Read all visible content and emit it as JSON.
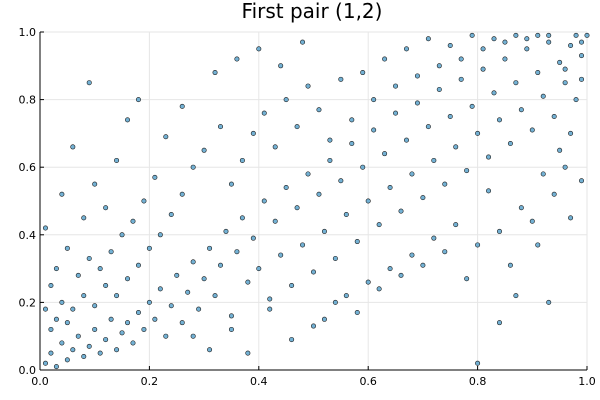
{
  "chart_data": {
    "type": "scatter",
    "title": "First pair (1,2)",
    "xlabel": "",
    "ylabel": "",
    "xlim": [
      0,
      1
    ],
    "ylim": [
      0,
      1
    ],
    "xticks": [
      0.0,
      0.2,
      0.4,
      0.6,
      0.8,
      1.0
    ],
    "yticks": [
      0.0,
      0.2,
      0.4,
      0.6,
      0.8,
      1.0
    ],
    "xtick_labels": [
      "0.0",
      "0.2",
      "0.4",
      "0.6",
      "0.8",
      "1.0"
    ],
    "ytick_labels": [
      "0.0",
      "0.2",
      "0.4",
      "0.6",
      "0.8",
      "1.0"
    ],
    "grid": true,
    "legend": "none",
    "marker_color": "#5aa3cc",
    "marker_edge_color": "#1a1a1a",
    "series": [
      {
        "points": [
          [
            0.01,
            0.02
          ],
          [
            0.02,
            0.05
          ],
          [
            0.03,
            0.01
          ],
          [
            0.02,
            0.12
          ],
          [
            0.04,
            0.08
          ],
          [
            0.05,
            0.03
          ],
          [
            0.06,
            0.06
          ],
          [
            0.03,
            0.15
          ],
          [
            0.07,
            0.1
          ],
          [
            0.08,
            0.04
          ],
          [
            0.01,
            0.18
          ],
          [
            0.05,
            0.14
          ],
          [
            0.09,
            0.07
          ],
          [
            0.1,
            0.12
          ],
          [
            0.04,
            0.2
          ],
          [
            0.11,
            0.05
          ],
          [
            0.12,
            0.09
          ],
          [
            0.06,
            0.18
          ],
          [
            0.13,
            0.15
          ],
          [
            0.02,
            0.25
          ],
          [
            0.08,
            0.22
          ],
          [
            0.14,
            0.06
          ],
          [
            0.15,
            0.11
          ],
          [
            0.1,
            0.19
          ],
          [
            0.16,
            0.14
          ],
          [
            0.12,
            0.25
          ],
          [
            0.03,
            0.3
          ],
          [
            0.17,
            0.08
          ],
          [
            0.18,
            0.17
          ],
          [
            0.07,
            0.28
          ],
          [
            0.14,
            0.22
          ],
          [
            0.19,
            0.12
          ],
          [
            0.2,
            0.2
          ],
          [
            0.09,
            0.33
          ],
          [
            0.16,
            0.27
          ],
          [
            0.21,
            0.15
          ],
          [
            0.05,
            0.36
          ],
          [
            0.11,
            0.3
          ],
          [
            0.22,
            0.24
          ],
          [
            0.13,
            0.35
          ],
          [
            0.23,
            0.1
          ],
          [
            0.18,
            0.31
          ],
          [
            0.24,
            0.19
          ],
          [
            0.15,
            0.4
          ],
          [
            0.25,
            0.28
          ],
          [
            0.01,
            0.42
          ],
          [
            0.2,
            0.36
          ],
          [
            0.26,
            0.14
          ],
          [
            0.27,
            0.23
          ],
          [
            0.08,
            0.45
          ],
          [
            0.17,
            0.44
          ],
          [
            0.28,
            0.32
          ],
          [
            0.22,
            0.4
          ],
          [
            0.29,
            0.18
          ],
          [
            0.3,
            0.27
          ],
          [
            0.12,
            0.48
          ],
          [
            0.24,
            0.46
          ],
          [
            0.31,
            0.36
          ],
          [
            0.04,
            0.52
          ],
          [
            0.19,
            0.5
          ],
          [
            0.32,
            0.22
          ],
          [
            0.26,
            0.52
          ],
          [
            0.33,
            0.31
          ],
          [
            0.1,
            0.55
          ],
          [
            0.34,
            0.41
          ],
          [
            0.21,
            0.57
          ],
          [
            0.35,
            0.16
          ],
          [
            0.28,
            0.6
          ],
          [
            0.36,
            0.35
          ],
          [
            0.14,
            0.62
          ],
          [
            0.37,
            0.45
          ],
          [
            0.3,
            0.65
          ],
          [
            0.38,
            0.26
          ],
          [
            0.06,
            0.66
          ],
          [
            0.39,
            0.39
          ],
          [
            0.23,
            0.69
          ],
          [
            0.4,
            0.3
          ],
          [
            0.33,
            0.72
          ],
          [
            0.41,
            0.5
          ],
          [
            0.16,
            0.74
          ],
          [
            0.42,
            0.21
          ],
          [
            0.35,
            0.55
          ],
          [
            0.43,
            0.44
          ],
          [
            0.26,
            0.78
          ],
          [
            0.44,
            0.34
          ],
          [
            0.37,
            0.62
          ],
          [
            0.45,
            0.54
          ],
          [
            0.09,
            0.85
          ],
          [
            0.46,
            0.25
          ],
          [
            0.39,
            0.7
          ],
          [
            0.47,
            0.48
          ],
          [
            0.32,
            0.88
          ],
          [
            0.48,
            0.37
          ],
          [
            0.41,
            0.76
          ],
          [
            0.49,
            0.58
          ],
          [
            0.18,
            0.8
          ],
          [
            0.5,
            0.29
          ],
          [
            0.43,
            0.66
          ],
          [
            0.51,
            0.52
          ],
          [
            0.36,
            0.92
          ],
          [
            0.52,
            0.41
          ],
          [
            0.45,
            0.8
          ],
          [
            0.53,
            0.62
          ],
          [
            0.28,
            0.1
          ],
          [
            0.54,
            0.33
          ],
          [
            0.47,
            0.72
          ],
          [
            0.55,
            0.56
          ],
          [
            0.4,
            0.95
          ],
          [
            0.56,
            0.46
          ],
          [
            0.49,
            0.84
          ],
          [
            0.57,
            0.67
          ],
          [
            0.31,
            0.06
          ],
          [
            0.58,
            0.38
          ],
          [
            0.51,
            0.77
          ],
          [
            0.59,
            0.6
          ],
          [
            0.44,
            0.9
          ],
          [
            0.6,
            0.5
          ],
          [
            0.53,
            0.68
          ],
          [
            0.61,
            0.71
          ],
          [
            0.35,
            0.12
          ],
          [
            0.62,
            0.43
          ],
          [
            0.55,
            0.86
          ],
          [
            0.63,
            0.64
          ],
          [
            0.48,
            0.97
          ],
          [
            0.64,
            0.54
          ],
          [
            0.57,
            0.74
          ],
          [
            0.65,
            0.76
          ],
          [
            0.38,
            0.05
          ],
          [
            0.66,
            0.47
          ],
          [
            0.59,
            0.88
          ],
          [
            0.67,
            0.68
          ],
          [
            0.52,
            0.15
          ],
          [
            0.68,
            0.58
          ],
          [
            0.61,
            0.8
          ],
          [
            0.69,
            0.79
          ],
          [
            0.42,
            0.18
          ],
          [
            0.7,
            0.51
          ],
          [
            0.63,
            0.92
          ],
          [
            0.71,
            0.72
          ],
          [
            0.56,
            0.22
          ],
          [
            0.72,
            0.62
          ],
          [
            0.65,
            0.84
          ],
          [
            0.73,
            0.83
          ],
          [
            0.46,
            0.09
          ],
          [
            0.74,
            0.55
          ],
          [
            0.67,
            0.95
          ],
          [
            0.75,
            0.75
          ],
          [
            0.6,
            0.26
          ],
          [
            0.76,
            0.66
          ],
          [
            0.69,
            0.87
          ],
          [
            0.77,
            0.86
          ],
          [
            0.5,
            0.13
          ],
          [
            0.78,
            0.59
          ],
          [
            0.71,
            0.98
          ],
          [
            0.79,
            0.78
          ],
          [
            0.64,
            0.3
          ],
          [
            0.8,
            0.7
          ],
          [
            0.73,
            0.9
          ],
          [
            0.81,
            0.89
          ],
          [
            0.54,
            0.2
          ],
          [
            0.82,
            0.63
          ],
          [
            0.75,
            0.96
          ],
          [
            0.83,
            0.82
          ],
          [
            0.68,
            0.34
          ],
          [
            0.84,
            0.74
          ],
          [
            0.77,
            0.92
          ],
          [
            0.85,
            0.92
          ],
          [
            0.58,
            0.17
          ],
          [
            0.86,
            0.67
          ],
          [
            0.79,
            0.99
          ],
          [
            0.87,
            0.85
          ],
          [
            0.72,
            0.39
          ],
          [
            0.88,
            0.77
          ],
          [
            0.81,
            0.95
          ],
          [
            0.89,
            0.95
          ],
          [
            0.62,
            0.24
          ],
          [
            0.9,
            0.71
          ],
          [
            0.83,
            0.98
          ],
          [
            0.91,
            0.88
          ],
          [
            0.76,
            0.43
          ],
          [
            0.92,
            0.81
          ],
          [
            0.85,
            0.97
          ],
          [
            0.93,
            0.97
          ],
          [
            0.66,
            0.28
          ],
          [
            0.94,
            0.75
          ],
          [
            0.87,
            0.99
          ],
          [
            0.95,
            0.91
          ],
          [
            0.8,
            0.37
          ],
          [
            0.96,
            0.85
          ],
          [
            0.89,
            0.98
          ],
          [
            0.97,
            0.96
          ],
          [
            0.7,
            0.31
          ],
          [
            0.98,
            0.8
          ],
          [
            0.91,
            0.99
          ],
          [
            0.99,
            0.93
          ],
          [
            0.84,
            0.41
          ],
          [
            0.95,
            0.65
          ],
          [
            0.93,
            0.99
          ],
          [
            0.98,
            0.99
          ],
          [
            0.74,
            0.35
          ],
          [
            0.97,
            0.7
          ],
          [
            0.99,
            0.97
          ],
          [
            0.88,
            0.48
          ],
          [
            0.96,
            0.89
          ],
          [
            1.0,
            0.99
          ],
          [
            0.78,
            0.27
          ],
          [
            0.99,
            0.86
          ],
          [
            0.92,
            0.58
          ],
          [
            0.94,
            0.52
          ],
          [
            0.86,
            0.31
          ],
          [
            0.9,
            0.44
          ],
          [
            0.82,
            0.53
          ],
          [
            0.96,
            0.6
          ],
          [
            0.8,
            0.02
          ],
          [
            0.93,
            0.2
          ],
          [
            0.97,
            0.45
          ],
          [
            0.84,
            0.14
          ],
          [
            0.91,
            0.37
          ],
          [
            0.99,
            0.56
          ],
          [
            0.87,
            0.22
          ]
        ]
      }
    ]
  }
}
